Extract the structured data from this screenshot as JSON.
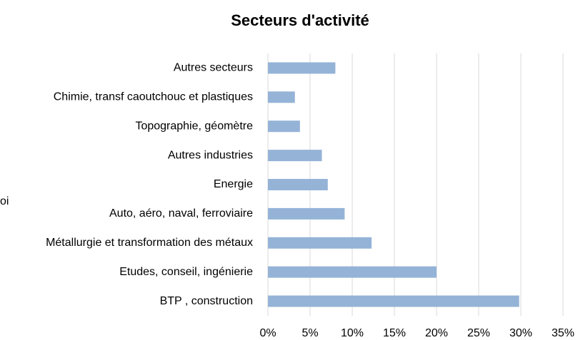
{
  "chart_data": {
    "type": "barh",
    "title": "Secteurs d'activité",
    "annotation": "oi",
    "categories": [
      "Autres secteurs",
      "Chimie, transf caoutchouc et plastiques",
      "Topographie, géomètre",
      "Autres industries",
      "Energie",
      "Auto, aéro, naval, ferroviaire",
      "Métallurgie et transformation des métaux",
      "Etudes, conseil, ingénierie",
      "BTP , construction"
    ],
    "values": [
      8,
      3.2,
      3.8,
      6.4,
      7.1,
      9.1,
      12.3,
      20,
      29.8
    ],
    "color": "#95b3d7",
    "xlim": [
      0,
      35
    ],
    "xticks": [
      {
        "value": 0,
        "label": "0%"
      },
      {
        "value": 5,
        "label": "5%"
      },
      {
        "value": 10,
        "label": "10%"
      },
      {
        "value": 15,
        "label": "15%"
      },
      {
        "value": 20,
        "label": "20%"
      },
      {
        "value": 25,
        "label": "25%"
      },
      {
        "value": 30,
        "label": "30%"
      },
      {
        "value": 35,
        "label": "35%"
      }
    ],
    "grid": true
  }
}
